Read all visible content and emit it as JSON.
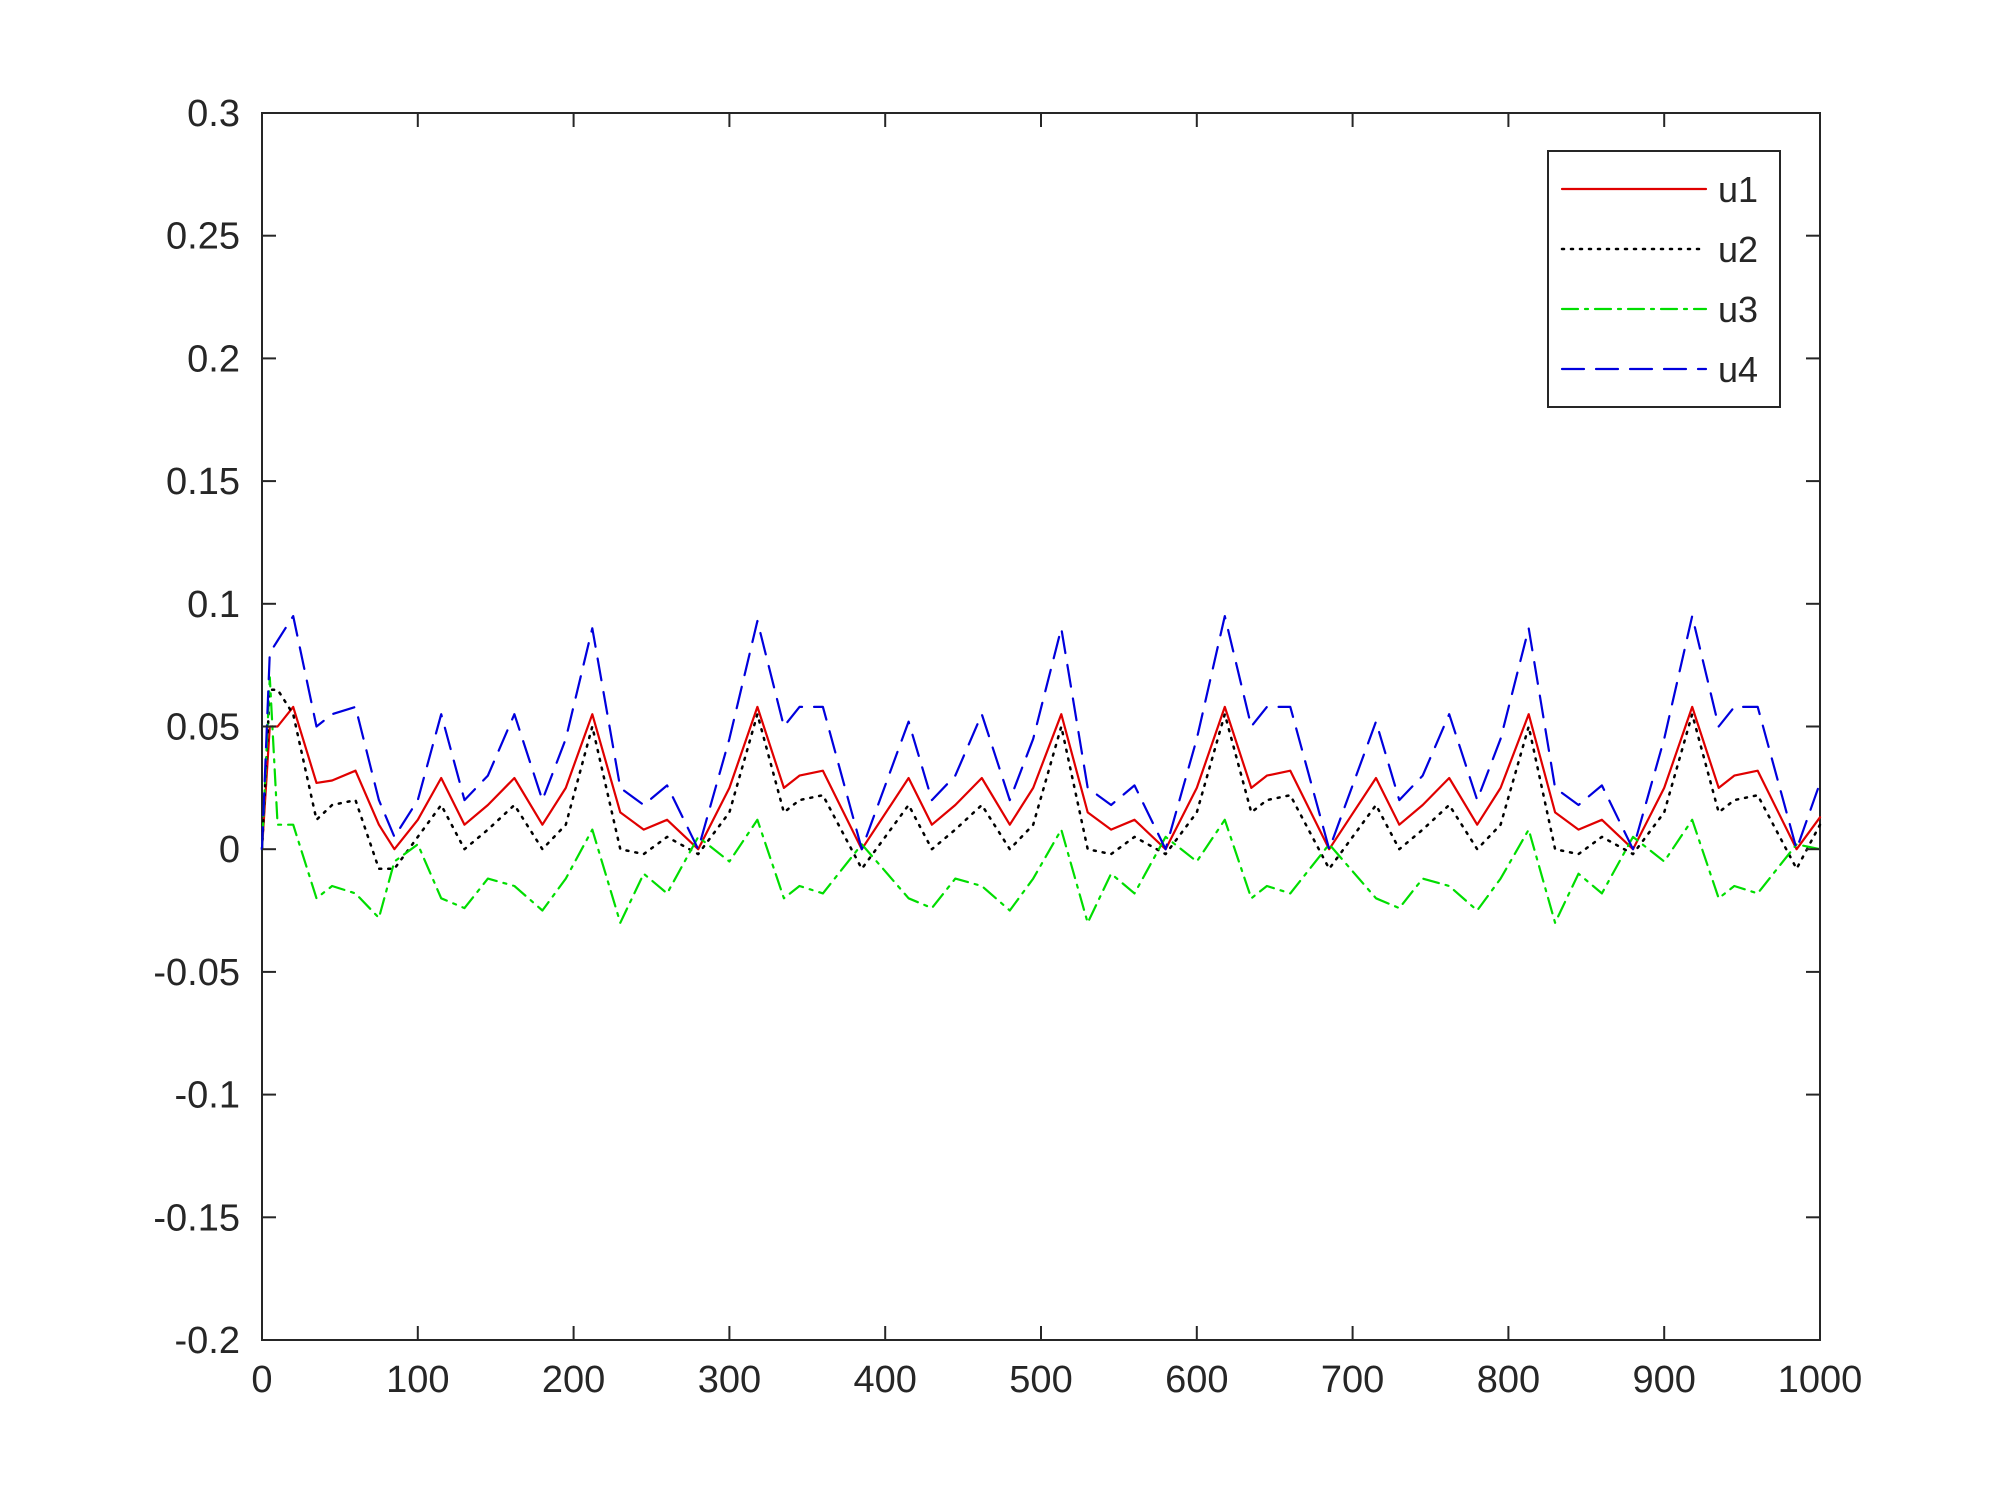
{
  "chart_data": {
    "type": "line",
    "xlim": [
      0,
      1000
    ],
    "ylim": [
      -0.2,
      0.3
    ],
    "xticks": [
      0,
      100,
      200,
      300,
      400,
      500,
      600,
      700,
      800,
      900,
      1000
    ],
    "yticks": [
      0.3,
      0.25,
      0.2,
      0.15,
      0.1,
      0.05,
      0,
      -0.05,
      -0.1,
      -0.15,
      -0.2
    ],
    "xtick_labels": [
      "0",
      "100",
      "200",
      "300",
      "400",
      "500",
      "600",
      "700",
      "800",
      "900",
      "1000"
    ],
    "ytick_labels": [
      "0.3",
      "0.25",
      "0.2",
      "0.15",
      "0.1",
      "0.05",
      "0",
      "-0.05",
      "-0.1",
      "-0.15",
      "-0.2"
    ],
    "grid": false,
    "legend_position": "top-right",
    "x": [
      0,
      5,
      10,
      20,
      35,
      45,
      60,
      75,
      85,
      100,
      115,
      130,
      145,
      162,
      180,
      195,
      212,
      230,
      245,
      260,
      280,
      300,
      318,
      335,
      345,
      360,
      385,
      415,
      430,
      445,
      462,
      480,
      495,
      513,
      530,
      545,
      560,
      580,
      600,
      618,
      635,
      645,
      660,
      685,
      715,
      730,
      745,
      762,
      780,
      795,
      813,
      830,
      845,
      860,
      880,
      900,
      918,
      935,
      945,
      960,
      985,
      1000
    ],
    "series": [
      {
        "name": "u1",
        "color": "#e00000",
        "dash": "solid",
        "values": [
          0,
          0.05,
          0.05,
          0.058,
          0.027,
          0.028,
          0.032,
          0.01,
          0,
          0.012,
          0.029,
          0.01,
          0.018,
          0.029,
          0.01,
          0.025,
          0.055,
          0.015,
          0.008,
          0.012,
          0,
          0.025,
          0.058,
          0.025,
          0.03,
          0.032,
          0,
          0.029,
          0.01,
          0.018,
          0.029,
          0.01,
          0.025,
          0.055,
          0.015,
          0.008,
          0.012,
          0,
          0.025,
          0.058,
          0.025,
          0.03,
          0.032,
          0,
          0.029,
          0.01,
          0.018,
          0.029,
          0.01,
          0.025,
          0.055,
          0.015,
          0.008,
          0.012,
          0,
          0.025,
          0.058,
          0.025,
          0.03,
          0.032,
          0,
          0.013
        ]
      },
      {
        "name": "u2",
        "color": "#000000",
        "dash": "dotted",
        "values": [
          0,
          0.065,
          0.065,
          0.055,
          0.012,
          0.018,
          0.02,
          -0.008,
          -0.008,
          0.005,
          0.018,
          0,
          0.008,
          0.018,
          0,
          0.01,
          0.05,
          0,
          -0.002,
          0.005,
          -0.002,
          0.015,
          0.055,
          0.015,
          0.02,
          0.022,
          -0.008,
          0.018,
          0,
          0.008,
          0.018,
          0,
          0.01,
          0.05,
          0,
          -0.002,
          0.005,
          -0.002,
          0.015,
          0.055,
          0.015,
          0.02,
          0.022,
          -0.008,
          0.018,
          0,
          0.008,
          0.018,
          0,
          0.01,
          0.05,
          0,
          -0.002,
          0.005,
          -0.002,
          0.015,
          0.055,
          0.015,
          0.02,
          0.022,
          -0.008,
          0.01
        ]
      },
      {
        "name": "u3",
        "color": "#00dd00",
        "dash": "dashdot",
        "values": [
          0,
          0.07,
          0.01,
          0.01,
          -0.02,
          -0.015,
          -0.018,
          -0.028,
          -0.005,
          0.002,
          -0.02,
          -0.024,
          -0.012,
          -0.015,
          -0.025,
          -0.012,
          0.008,
          -0.03,
          -0.01,
          -0.018,
          0.005,
          -0.005,
          0.012,
          -0.02,
          -0.015,
          -0.018,
          0.002,
          -0.02,
          -0.024,
          -0.012,
          -0.015,
          -0.025,
          -0.012,
          0.008,
          -0.03,
          -0.01,
          -0.018,
          0.005,
          -0.005,
          0.012,
          -0.02,
          -0.015,
          -0.018,
          0.002,
          -0.02,
          -0.024,
          -0.012,
          -0.015,
          -0.025,
          -0.012,
          0.008,
          -0.03,
          -0.01,
          -0.018,
          0.005,
          -0.005,
          0.012,
          -0.02,
          -0.015,
          -0.018,
          0.002,
          0
        ]
      },
      {
        "name": "u4",
        "color": "#0000dd",
        "dash": "dashed",
        "values": [
          0,
          0.08,
          0.085,
          0.095,
          0.05,
          0.055,
          0.058,
          0.02,
          0.005,
          0.02,
          0.055,
          0.02,
          0.03,
          0.055,
          0.02,
          0.045,
          0.09,
          0.025,
          0.018,
          0.026,
          0,
          0.045,
          0.093,
          0.05,
          0.058,
          0.058,
          0,
          0.052,
          0.02,
          0.03,
          0.055,
          0.02,
          0.045,
          0.09,
          0.025,
          0.018,
          0.026,
          0,
          0.045,
          0.095,
          0.05,
          0.058,
          0.058,
          0,
          0.052,
          0.02,
          0.03,
          0.055,
          0.02,
          0.045,
          0.09,
          0.025,
          0.018,
          0.026,
          0,
          0.045,
          0.095,
          0.05,
          0.058,
          0.058,
          0,
          0.027
        ]
      }
    ]
  }
}
